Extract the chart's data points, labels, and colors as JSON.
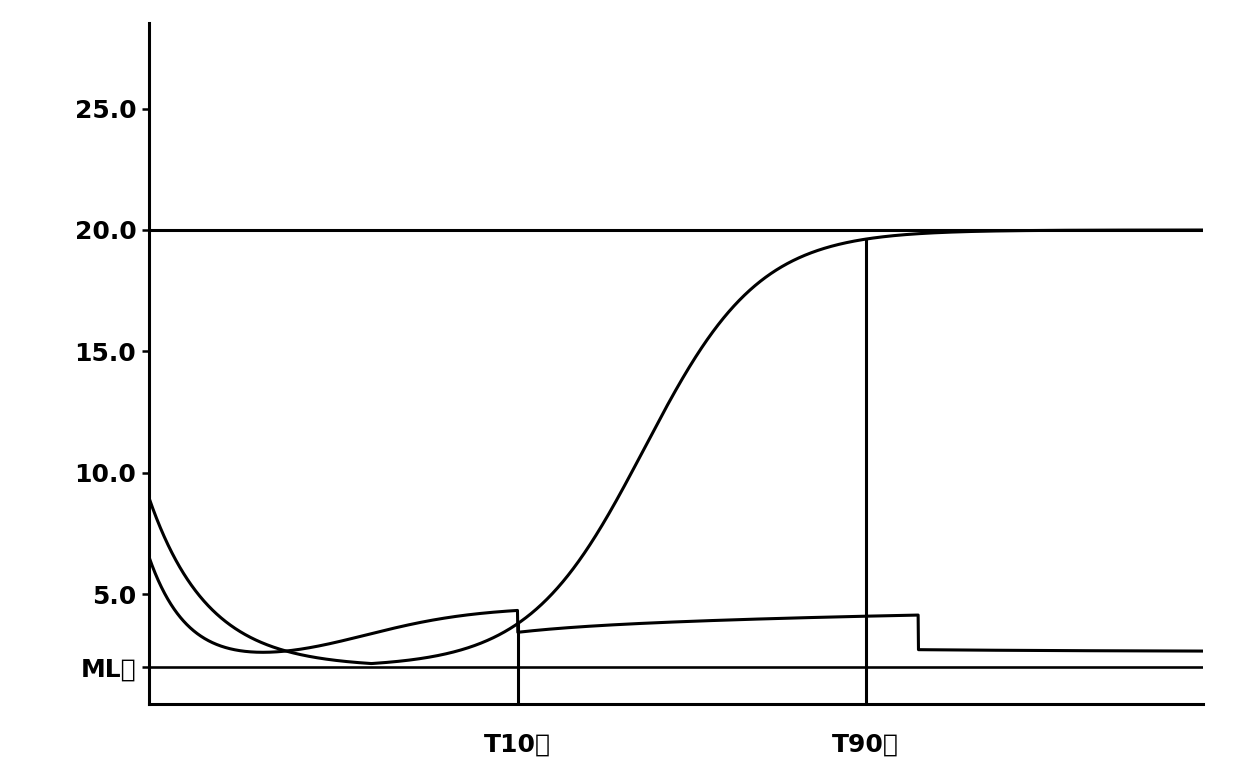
{
  "background_color": "#ffffff",
  "line_color": "#000000",
  "ylim": [
    0.5,
    28.5
  ],
  "xlim": [
    0,
    100
  ],
  "ml_value": 2.0,
  "mh_value": 20.0,
  "t10_x": 35,
  "t90_x": 68,
  "t10_label": "T10値",
  "t90_label": "T90値",
  "ml_label": "ML値",
  "label_fontsize": 18,
  "tick_fontsize": 18,
  "linewidth": 2.2,
  "ytick_positions": [
    2.0,
    5.0,
    10.0,
    15.0,
    20.0,
    25.0
  ],
  "ytick_labels": [
    "ML値",
    "5.0",
    "10.0",
    "15.0",
    "20.0",
    "25.0"
  ]
}
